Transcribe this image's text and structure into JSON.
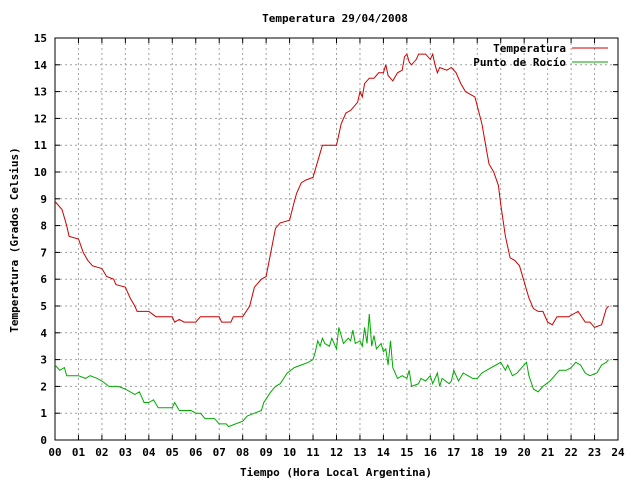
{
  "chart_data": {
    "type": "line",
    "title": "Temperatura 29/04/2008",
    "xlabel": "Tiempo (Hora Local Argentina)",
    "ylabel": "Temperatura (Grados Celsius)",
    "xlim": [
      0,
      24
    ],
    "ylim": [
      0,
      15
    ],
    "grid": true,
    "legend_position": "top-right",
    "x_ticks": [
      "00",
      "01",
      "02",
      "03",
      "04",
      "05",
      "06",
      "07",
      "08",
      "09",
      "10",
      "11",
      "12",
      "13",
      "14",
      "15",
      "16",
      "17",
      "18",
      "19",
      "20",
      "21",
      "22",
      "23",
      "24"
    ],
    "y_ticks": [
      "0",
      "1",
      "2",
      "3",
      "4",
      "5",
      "6",
      "7",
      "8",
      "9",
      "10",
      "11",
      "12",
      "13",
      "14",
      "15"
    ],
    "series": [
      {
        "name": "Temperatura",
        "color": "#cc0000",
        "points": [
          [
            0.0,
            8.9
          ],
          [
            0.3,
            8.6
          ],
          [
            0.5,
            8.0
          ],
          [
            0.6,
            7.6
          ],
          [
            1.0,
            7.5
          ],
          [
            1.2,
            7.0
          ],
          [
            1.4,
            6.7
          ],
          [
            1.6,
            6.5
          ],
          [
            2.0,
            6.4
          ],
          [
            2.2,
            6.1
          ],
          [
            2.5,
            6.0
          ],
          [
            2.6,
            5.8
          ],
          [
            3.0,
            5.7
          ],
          [
            3.2,
            5.3
          ],
          [
            3.4,
            5.0
          ],
          [
            3.5,
            4.8
          ],
          [
            4.0,
            4.8
          ],
          [
            4.3,
            4.6
          ],
          [
            5.0,
            4.6
          ],
          [
            5.1,
            4.4
          ],
          [
            5.3,
            4.5
          ],
          [
            5.5,
            4.4
          ],
          [
            6.0,
            4.4
          ],
          [
            6.2,
            4.6
          ],
          [
            7.0,
            4.6
          ],
          [
            7.1,
            4.4
          ],
          [
            7.5,
            4.4
          ],
          [
            7.6,
            4.6
          ],
          [
            8.0,
            4.6
          ],
          [
            8.3,
            5.0
          ],
          [
            8.5,
            5.7
          ],
          [
            8.8,
            6.0
          ],
          [
            9.0,
            6.1
          ],
          [
            9.2,
            7.0
          ],
          [
            9.4,
            7.9
          ],
          [
            9.6,
            8.1
          ],
          [
            10.0,
            8.2
          ],
          [
            10.2,
            8.9
          ],
          [
            10.3,
            9.2
          ],
          [
            10.5,
            9.6
          ],
          [
            10.7,
            9.7
          ],
          [
            11.0,
            9.8
          ],
          [
            11.2,
            10.4
          ],
          [
            11.4,
            11.0
          ],
          [
            12.0,
            11.0
          ],
          [
            12.2,
            11.8
          ],
          [
            12.4,
            12.2
          ],
          [
            12.6,
            12.3
          ],
          [
            12.9,
            12.6
          ],
          [
            13.0,
            13.0
          ],
          [
            13.1,
            12.8
          ],
          [
            13.2,
            13.3
          ],
          [
            13.4,
            13.5
          ],
          [
            13.6,
            13.5
          ],
          [
            13.8,
            13.7
          ],
          [
            14.0,
            13.7
          ],
          [
            14.1,
            14.0
          ],
          [
            14.2,
            13.6
          ],
          [
            14.4,
            13.4
          ],
          [
            14.6,
            13.7
          ],
          [
            14.8,
            13.8
          ],
          [
            14.9,
            14.3
          ],
          [
            15.0,
            14.4
          ],
          [
            15.1,
            14.1
          ],
          [
            15.2,
            14.0
          ],
          [
            15.4,
            14.2
          ],
          [
            15.5,
            14.4
          ],
          [
            15.8,
            14.4
          ],
          [
            16.0,
            14.2
          ],
          [
            16.1,
            14.4
          ],
          [
            16.2,
            14.0
          ],
          [
            16.3,
            13.7
          ],
          [
            16.4,
            13.9
          ],
          [
            16.7,
            13.8
          ],
          [
            16.9,
            13.9
          ],
          [
            17.1,
            13.7
          ],
          [
            17.3,
            13.3
          ],
          [
            17.5,
            13.0
          ],
          [
            17.7,
            12.9
          ],
          [
            17.9,
            12.8
          ],
          [
            18.2,
            11.8
          ],
          [
            18.4,
            10.8
          ],
          [
            18.5,
            10.3
          ],
          [
            18.7,
            10.0
          ],
          [
            18.9,
            9.5
          ],
          [
            19.0,
            8.8
          ],
          [
            19.2,
            7.6
          ],
          [
            19.4,
            6.8
          ],
          [
            19.6,
            6.7
          ],
          [
            19.8,
            6.5
          ],
          [
            20.0,
            5.9
          ],
          [
            20.2,
            5.3
          ],
          [
            20.4,
            4.9
          ],
          [
            20.6,
            4.8
          ],
          [
            20.8,
            4.8
          ],
          [
            21.0,
            4.4
          ],
          [
            21.2,
            4.3
          ],
          [
            21.4,
            4.6
          ],
          [
            21.9,
            4.6
          ],
          [
            22.1,
            4.7
          ],
          [
            22.3,
            4.8
          ],
          [
            22.6,
            4.4
          ],
          [
            22.8,
            4.4
          ],
          [
            23.0,
            4.2
          ],
          [
            23.3,
            4.3
          ],
          [
            23.5,
            4.9
          ],
          [
            23.6,
            5.0
          ]
        ]
      },
      {
        "name": "Punto de Rocío",
        "color": "#00aa00",
        "points": [
          [
            0.0,
            2.8
          ],
          [
            0.2,
            2.6
          ],
          [
            0.4,
            2.7
          ],
          [
            0.5,
            2.4
          ],
          [
            1.0,
            2.4
          ],
          [
            1.3,
            2.3
          ],
          [
            1.5,
            2.4
          ],
          [
            1.8,
            2.3
          ],
          [
            2.0,
            2.2
          ],
          [
            2.3,
            2.0
          ],
          [
            2.7,
            2.0
          ],
          [
            3.0,
            1.9
          ],
          [
            3.2,
            1.8
          ],
          [
            3.4,
            1.7
          ],
          [
            3.6,
            1.8
          ],
          [
            3.8,
            1.4
          ],
          [
            4.0,
            1.4
          ],
          [
            4.2,
            1.5
          ],
          [
            4.4,
            1.2
          ],
          [
            4.7,
            1.2
          ],
          [
            5.0,
            1.2
          ],
          [
            5.1,
            1.4
          ],
          [
            5.3,
            1.1
          ],
          [
            5.8,
            1.1
          ],
          [
            6.0,
            1.0
          ],
          [
            6.2,
            1.0
          ],
          [
            6.4,
            0.8
          ],
          [
            6.8,
            0.8
          ],
          [
            7.0,
            0.6
          ],
          [
            7.3,
            0.6
          ],
          [
            7.4,
            0.5
          ],
          [
            7.7,
            0.6
          ],
          [
            8.0,
            0.7
          ],
          [
            8.2,
            0.9
          ],
          [
            8.5,
            1.0
          ],
          [
            8.8,
            1.1
          ],
          [
            8.9,
            1.4
          ],
          [
            9.2,
            1.8
          ],
          [
            9.4,
            2.0
          ],
          [
            9.6,
            2.1
          ],
          [
            9.9,
            2.5
          ],
          [
            10.2,
            2.7
          ],
          [
            10.5,
            2.8
          ],
          [
            10.8,
            2.9
          ],
          [
            11.0,
            3.0
          ],
          [
            11.1,
            3.3
          ],
          [
            11.2,
            3.7
          ],
          [
            11.3,
            3.5
          ],
          [
            11.4,
            3.8
          ],
          [
            11.5,
            3.6
          ],
          [
            11.7,
            3.5
          ],
          [
            11.8,
            3.8
          ],
          [
            12.0,
            3.4
          ],
          [
            12.1,
            4.2
          ],
          [
            12.2,
            3.9
          ],
          [
            12.3,
            3.6
          ],
          [
            12.5,
            3.8
          ],
          [
            12.6,
            3.7
          ],
          [
            12.7,
            4.1
          ],
          [
            12.8,
            3.6
          ],
          [
            13.0,
            3.7
          ],
          [
            13.1,
            3.5
          ],
          [
            13.2,
            4.2
          ],
          [
            13.3,
            3.6
          ],
          [
            13.4,
            4.7
          ],
          [
            13.5,
            3.5
          ],
          [
            13.6,
            3.9
          ],
          [
            13.7,
            3.4
          ],
          [
            13.9,
            3.6
          ],
          [
            14.0,
            3.3
          ],
          [
            14.1,
            3.4
          ],
          [
            14.2,
            2.8
          ],
          [
            14.3,
            3.7
          ],
          [
            14.4,
            2.7
          ],
          [
            14.6,
            2.3
          ],
          [
            14.8,
            2.4
          ],
          [
            15.0,
            2.3
          ],
          [
            15.1,
            2.6
          ],
          [
            15.2,
            2.0
          ],
          [
            15.5,
            2.1
          ],
          [
            15.6,
            2.3
          ],
          [
            15.8,
            2.2
          ],
          [
            16.0,
            2.4
          ],
          [
            16.1,
            2.1
          ],
          [
            16.3,
            2.5
          ],
          [
            16.4,
            2.0
          ],
          [
            16.5,
            2.3
          ],
          [
            16.8,
            2.1
          ],
          [
            16.9,
            2.2
          ],
          [
            17.0,
            2.6
          ],
          [
            17.2,
            2.2
          ],
          [
            17.4,
            2.5
          ],
          [
            17.6,
            2.4
          ],
          [
            17.8,
            2.3
          ],
          [
            18.0,
            2.3
          ],
          [
            18.2,
            2.5
          ],
          [
            18.4,
            2.6
          ],
          [
            18.6,
            2.7
          ],
          [
            18.8,
            2.8
          ],
          [
            19.0,
            2.9
          ],
          [
            19.2,
            2.6
          ],
          [
            19.3,
            2.8
          ],
          [
            19.5,
            2.4
          ],
          [
            19.7,
            2.5
          ],
          [
            19.9,
            2.7
          ],
          [
            20.1,
            2.9
          ],
          [
            20.2,
            2.4
          ],
          [
            20.4,
            1.9
          ],
          [
            20.6,
            1.8
          ],
          [
            20.8,
            2.0
          ],
          [
            21.1,
            2.2
          ],
          [
            21.3,
            2.4
          ],
          [
            21.5,
            2.6
          ],
          [
            21.8,
            2.6
          ],
          [
            22.0,
            2.7
          ],
          [
            22.2,
            2.9
          ],
          [
            22.4,
            2.8
          ],
          [
            22.6,
            2.5
          ],
          [
            22.8,
            2.4
          ],
          [
            23.1,
            2.5
          ],
          [
            23.3,
            2.8
          ],
          [
            23.5,
            2.9
          ],
          [
            23.6,
            3.0
          ]
        ]
      }
    ]
  }
}
